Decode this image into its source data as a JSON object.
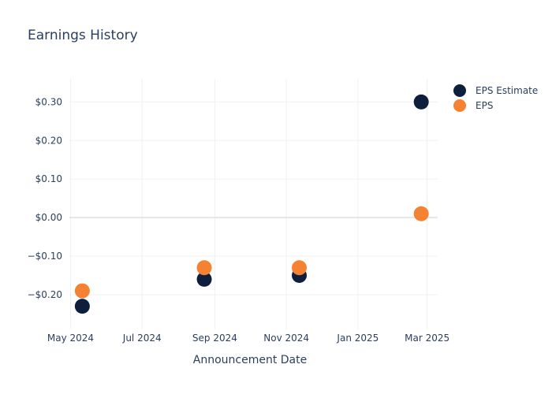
{
  "chart_data": {
    "type": "scatter",
    "title": "Earnings History",
    "xlabel": "Announcement Date",
    "ylabel": "",
    "x_tick_labels": [
      "May 2024",
      "Jul 2024",
      "Sep 2024",
      "Nov 2024",
      "Jan 2025",
      "Mar 2025"
    ],
    "x_ticks": [
      "2024-05-01",
      "2024-07-01",
      "2024-09-01",
      "2024-11-01",
      "2025-01-01",
      "2025-03-01"
    ],
    "xlim": [
      "2024-04-30",
      "2025-03-10"
    ],
    "y_ticks": [
      0.3,
      0.2,
      0.1,
      0.0,
      -0.1,
      -0.2
    ],
    "y_tick_labels": [
      "$0.30",
      "$0.20",
      "$0.10",
      "$0.00",
      "−$0.10",
      "−$0.20"
    ],
    "ylim": [
      -0.29,
      0.36
    ],
    "x": [
      "2024-05-11",
      "2024-08-23",
      "2024-11-12",
      "2025-02-24"
    ],
    "series": [
      {
        "name": "EPS Estimate",
        "color": "#0d1f3d",
        "values": [
          -0.23,
          -0.16,
          -0.15,
          0.3
        ]
      },
      {
        "name": "EPS",
        "color": "#f58233",
        "values": [
          -0.19,
          -0.13,
          -0.13,
          0.01
        ]
      }
    ],
    "legend_position": "top-right",
    "grid": true
  }
}
